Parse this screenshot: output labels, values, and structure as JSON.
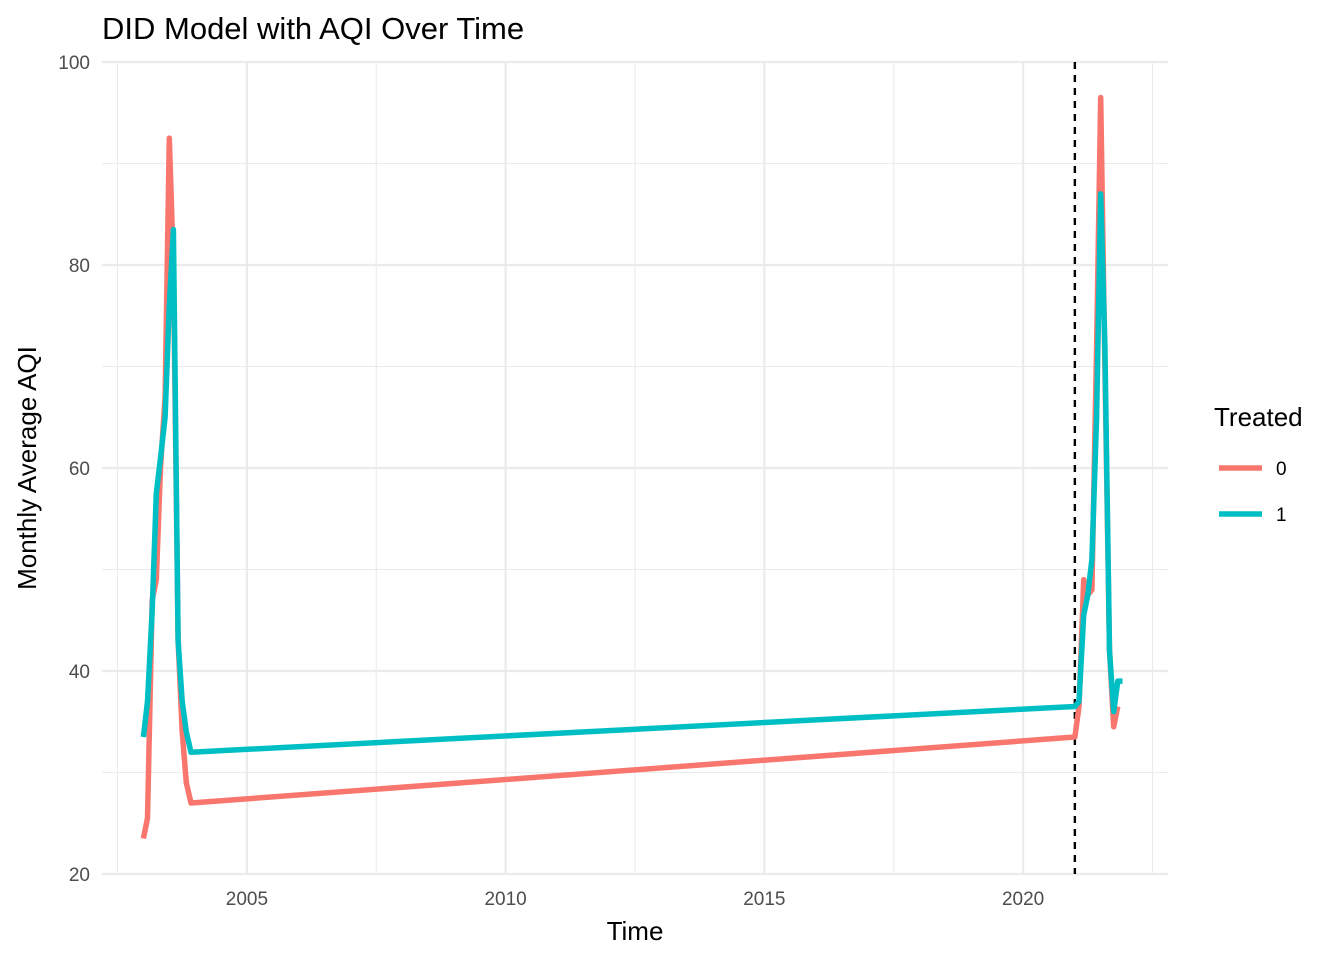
{
  "chart_data": {
    "type": "line",
    "title": "DID Model with AQI Over Time",
    "xlabel": "Time",
    "ylabel": "Monthly Average AQI",
    "xlim": [
      2002.2,
      2022.8
    ],
    "ylim": [
      20,
      100
    ],
    "x_ticks": [
      2005,
      2010,
      2015,
      2020
    ],
    "y_ticks": [
      20,
      40,
      60,
      80,
      100
    ],
    "grid": true,
    "legend": {
      "title": "Treated",
      "position": "right"
    },
    "intervention_line": {
      "x": 2021.0,
      "style": "dashed",
      "color": "#000000"
    },
    "series": [
      {
        "name": "0",
        "color": "#F8766D",
        "points": [
          [
            2003.0,
            23.5
          ],
          [
            2003.08,
            25.5
          ],
          [
            2003.17,
            47.0
          ],
          [
            2003.25,
            49.0
          ],
          [
            2003.33,
            60.0
          ],
          [
            2003.42,
            67.0
          ],
          [
            2003.5,
            92.5
          ],
          [
            2003.58,
            80.0
          ],
          [
            2003.67,
            43.0
          ],
          [
            2003.75,
            34.0
          ],
          [
            2003.83,
            29.0
          ],
          [
            2003.92,
            27.0
          ],
          [
            2021.0,
            33.5
          ],
          [
            2021.08,
            36.5
          ],
          [
            2021.17,
            49.0
          ],
          [
            2021.25,
            47.5
          ],
          [
            2021.33,
            48.0
          ],
          [
            2021.42,
            72.0
          ],
          [
            2021.5,
            96.5
          ],
          [
            2021.58,
            70.0
          ],
          [
            2021.67,
            42.0
          ],
          [
            2021.75,
            34.5
          ],
          [
            2021.83,
            36.5
          ]
        ]
      },
      {
        "name": "1",
        "color": "#00BFC4",
        "points": [
          [
            2003.0,
            33.5
          ],
          [
            2003.08,
            37.0
          ],
          [
            2003.17,
            46.0
          ],
          [
            2003.25,
            57.5
          ],
          [
            2003.33,
            61.0
          ],
          [
            2003.42,
            65.0
          ],
          [
            2003.5,
            76.0
          ],
          [
            2003.58,
            83.5
          ],
          [
            2003.67,
            43.0
          ],
          [
            2003.75,
            37.0
          ],
          [
            2003.83,
            34.0
          ],
          [
            2003.92,
            32.0
          ],
          [
            2021.0,
            36.5
          ],
          [
            2021.08,
            37.0
          ],
          [
            2021.17,
            45.5
          ],
          [
            2021.25,
            47.5
          ],
          [
            2021.33,
            51.0
          ],
          [
            2021.42,
            65.0
          ],
          [
            2021.5,
            87.0
          ],
          [
            2021.58,
            72.0
          ],
          [
            2021.67,
            42.0
          ],
          [
            2021.75,
            36.0
          ],
          [
            2021.83,
            39.0
          ],
          [
            2021.92,
            39.0
          ]
        ]
      }
    ]
  }
}
